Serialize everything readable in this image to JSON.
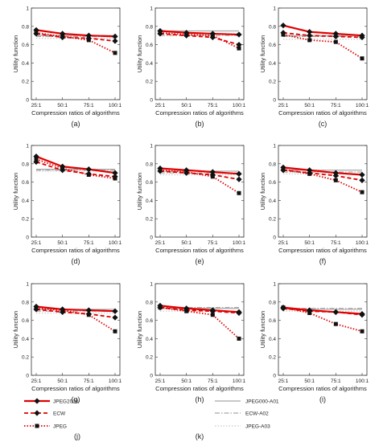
{
  "figure": {
    "legend": {
      "entries": [
        {
          "name": "JPEG2000",
          "color": "#e00000",
          "style": "solid",
          "marker": "diamond"
        },
        {
          "name": "ECW",
          "color": "#e00000",
          "style": "dashed",
          "marker": "diamond"
        },
        {
          "name": "JPEG",
          "color": "#e00000",
          "style": "dotted",
          "marker": "square"
        },
        {
          "name": "JPEG000-A01",
          "color": "#a8a8a8",
          "style": "solid",
          "marker": "none"
        },
        {
          "name": "ECW-A02",
          "color": "#a8a8a8",
          "style": "dashdot",
          "marker": "none"
        },
        {
          "name": "JPEG-A03",
          "color": "#c8c8c8",
          "style": "dotted",
          "marker": "none"
        }
      ]
    },
    "legend_panel_labels": [
      "(j)",
      "(k)"
    ]
  },
  "chart_data": [
    {
      "panel": "(a)",
      "type": "line",
      "categories": [
        "25:1",
        "50:1",
        "75:1",
        "100:1"
      ],
      "xlabel": "Compression ratios of algorithms",
      "ylabel": "Utility function",
      "ylim": [
        0,
        1
      ],
      "yticks": [
        "0",
        "0.2",
        "0.4",
        "0.6",
        "0.8",
        "1"
      ],
      "series": [
        {
          "name": "JPEG2000",
          "values": [
            0.76,
            0.72,
            0.7,
            0.69
          ]
        },
        {
          "name": "ECW",
          "values": [
            0.72,
            0.68,
            0.67,
            0.64
          ]
        },
        {
          "name": "JPEG",
          "values": [
            0.73,
            0.69,
            0.65,
            0.51
          ]
        },
        {
          "name": "JPEG000-A01",
          "values": [
            0.7,
            0.7,
            0.7,
            0.7
          ]
        },
        {
          "name": "ECW-A02",
          "values": [
            0.69,
            0.69,
            0.69,
            0.69
          ]
        },
        {
          "name": "JPEG-A03",
          "values": [
            0.67,
            0.67,
            0.67,
            0.67
          ]
        }
      ]
    },
    {
      "panel": "(b)",
      "type": "line",
      "categories": [
        "25:1",
        "50:1",
        "75:1",
        "100:1"
      ],
      "xlabel": "Compression ratios of algorithms",
      "ylabel": "Utility function",
      "ylim": [
        0,
        1
      ],
      "yticks": [
        "0",
        "0.2",
        "0.4",
        "0.6",
        "0.8",
        "1"
      ],
      "series": [
        {
          "name": "JPEG2000",
          "values": [
            0.75,
            0.73,
            0.72,
            0.71
          ]
        },
        {
          "name": "ECW",
          "values": [
            0.72,
            0.7,
            0.68,
            0.6
          ]
        },
        {
          "name": "JPEG",
          "values": [
            0.73,
            0.71,
            0.7,
            0.56
          ]
        },
        {
          "name": "JPEG000-A01",
          "values": [
            0.75,
            0.75,
            0.75,
            0.75
          ]
        },
        {
          "name": "ECW-A02",
          "values": [
            0.7,
            0.7,
            0.7,
            0.7
          ]
        },
        {
          "name": "JPEG-A03",
          "values": [
            0.72,
            0.72,
            0.72,
            0.72
          ]
        }
      ]
    },
    {
      "panel": "(c)",
      "type": "line",
      "categories": [
        "25:1",
        "50:1",
        "75:1",
        "100:1"
      ],
      "xlabel": "Compression ratios of algorithms",
      "ylabel": "Utility function",
      "ylim": [
        0,
        1
      ],
      "yticks": [
        "0",
        "0.2",
        "0.4",
        "0.6",
        "0.8",
        "1"
      ],
      "series": [
        {
          "name": "JPEG2000",
          "values": [
            0.81,
            0.74,
            0.72,
            0.7
          ]
        },
        {
          "name": "ECW",
          "values": [
            0.73,
            0.7,
            0.69,
            0.68
          ]
        },
        {
          "name": "JPEG",
          "values": [
            0.71,
            0.65,
            0.63,
            0.45
          ]
        },
        {
          "name": "JPEG000-A01",
          "values": [
            0.7,
            0.7,
            0.7,
            0.7
          ]
        },
        {
          "name": "ECW-A02",
          "values": [
            0.69,
            0.69,
            0.69,
            0.69
          ]
        },
        {
          "name": "JPEG-A03",
          "values": [
            0.66,
            0.66,
            0.66,
            0.66
          ]
        }
      ]
    },
    {
      "panel": "(d)",
      "type": "line",
      "categories": [
        "25:1",
        "50:1",
        "75:1",
        "100:1"
      ],
      "xlabel": "Compression ratios of algorithms",
      "ylabel": "Utility function",
      "ylim": [
        0,
        1
      ],
      "yticks": [
        "0",
        "0.2",
        "0.4",
        "0.6",
        "0.8",
        "1"
      ],
      "series": [
        {
          "name": "JPEG2000",
          "values": [
            0.88,
            0.77,
            0.74,
            0.7
          ]
        },
        {
          "name": "ECW",
          "values": [
            0.82,
            0.73,
            0.69,
            0.66
          ]
        },
        {
          "name": "JPEG",
          "values": [
            0.85,
            0.75,
            0.68,
            0.64
          ]
        },
        {
          "name": "JPEG000-A01",
          "values": [
            0.74,
            0.74,
            0.74,
            0.74
          ]
        },
        {
          "name": "ECW-A02",
          "values": [
            0.73,
            0.73,
            0.73,
            0.73
          ]
        },
        {
          "name": "JPEG-A03",
          "values": [
            0.72,
            0.72,
            0.72,
            0.72
          ]
        }
      ]
    },
    {
      "panel": "(e)",
      "type": "line",
      "categories": [
        "25:1",
        "50:1",
        "75:1",
        "100:1"
      ],
      "xlabel": "Compression ratios of algorithms",
      "ylabel": "Utility function",
      "ylim": [
        0,
        1
      ],
      "yticks": [
        "0",
        "0.2",
        "0.4",
        "0.6",
        "0.8",
        "1"
      ],
      "series": [
        {
          "name": "JPEG2000",
          "values": [
            0.75,
            0.73,
            0.71,
            0.69
          ]
        },
        {
          "name": "ECW",
          "values": [
            0.72,
            0.7,
            0.68,
            0.63
          ]
        },
        {
          "name": "JPEG",
          "values": [
            0.73,
            0.71,
            0.66,
            0.48
          ]
        },
        {
          "name": "JPEG000-A01",
          "values": [
            0.72,
            0.72,
            0.72,
            0.72
          ]
        },
        {
          "name": "ECW-A02",
          "values": [
            0.7,
            0.7,
            0.7,
            0.7
          ]
        },
        {
          "name": "JPEG-A03",
          "values": [
            0.68,
            0.68,
            0.68,
            0.68
          ]
        }
      ]
    },
    {
      "panel": "(f)",
      "type": "line",
      "categories": [
        "25:1",
        "50:1",
        "75:1",
        "100:1"
      ],
      "xlabel": "Compression ratios of algorithms",
      "ylabel": "Utility function",
      "ylim": [
        0,
        1
      ],
      "yticks": [
        "0",
        "0.2",
        "0.4",
        "0.6",
        "0.8",
        "1"
      ],
      "series": [
        {
          "name": "JPEG2000",
          "values": [
            0.76,
            0.73,
            0.7,
            0.68
          ]
        },
        {
          "name": "ECW",
          "values": [
            0.73,
            0.7,
            0.67,
            0.62
          ]
        },
        {
          "name": "JPEG",
          "values": [
            0.74,
            0.69,
            0.62,
            0.49
          ]
        },
        {
          "name": "JPEG000-A01",
          "values": [
            0.73,
            0.73,
            0.73,
            0.73
          ]
        },
        {
          "name": "ECW-A02",
          "values": [
            0.71,
            0.71,
            0.71,
            0.71
          ]
        },
        {
          "name": "JPEG-A03",
          "values": [
            0.69,
            0.69,
            0.69,
            0.69
          ]
        }
      ]
    },
    {
      "panel": "(g)",
      "type": "line",
      "categories": [
        "25:1",
        "50:1",
        "75:1",
        "100:1"
      ],
      "xlabel": "Compression ratios of algorithms",
      "ylabel": "Utility function",
      "ylim": [
        0,
        1
      ],
      "yticks": [
        "0",
        "0.2",
        "0.4",
        "0.6",
        "0.8",
        "1"
      ],
      "series": [
        {
          "name": "JPEG2000",
          "values": [
            0.75,
            0.72,
            0.71,
            0.7
          ]
        },
        {
          "name": "ECW",
          "values": [
            0.72,
            0.69,
            0.67,
            0.63
          ]
        },
        {
          "name": "JPEG",
          "values": [
            0.73,
            0.71,
            0.66,
            0.48
          ]
        },
        {
          "name": "JPEG000-A01",
          "values": [
            0.72,
            0.72,
            0.72,
            0.72
          ]
        },
        {
          "name": "ECW-A02",
          "values": [
            0.7,
            0.7,
            0.7,
            0.7
          ]
        },
        {
          "name": "JPEG-A03",
          "values": [
            0.68,
            0.68,
            0.68,
            0.68
          ]
        }
      ]
    },
    {
      "panel": "(h)",
      "type": "line",
      "categories": [
        "25:1",
        "50:1",
        "75:1",
        "100:1"
      ],
      "xlabel": "Compression ratios of algorithms",
      "ylabel": "Utility function",
      "ylim": [
        0,
        1
      ],
      "yticks": [
        "0",
        "0.2",
        "0.4",
        "0.6",
        "0.8",
        "1"
      ],
      "series": [
        {
          "name": "JPEG2000",
          "values": [
            0.76,
            0.73,
            0.71,
            0.69
          ]
        },
        {
          "name": "ECW",
          "values": [
            0.74,
            0.71,
            0.7,
            0.68
          ]
        },
        {
          "name": "JPEG",
          "values": [
            0.74,
            0.7,
            0.66,
            0.4
          ]
        },
        {
          "name": "JPEG000-A01",
          "values": [
            0.73,
            0.73,
            0.73,
            0.73
          ]
        },
        {
          "name": "ECW-A02",
          "values": [
            0.74,
            0.74,
            0.74,
            0.74
          ]
        },
        {
          "name": "JPEG-A03",
          "values": [
            0.7,
            0.7,
            0.7,
            0.7
          ]
        }
      ]
    },
    {
      "panel": "(i)",
      "type": "line",
      "categories": [
        "25:1",
        "50:1",
        "75:1",
        "100:1"
      ],
      "xlabel": "Compression ratios of algorithms",
      "ylabel": "Utility function",
      "ylim": [
        0,
        1
      ],
      "yticks": [
        "0",
        "0.2",
        "0.4",
        "0.6",
        "0.8",
        "1"
      ],
      "series": [
        {
          "name": "JPEG2000",
          "values": [
            0.74,
            0.71,
            0.69,
            0.67
          ]
        },
        {
          "name": "ECW",
          "values": [
            0.73,
            0.7,
            0.69,
            0.66
          ]
        },
        {
          "name": "JPEG",
          "values": [
            0.74,
            0.68,
            0.56,
            0.48
          ]
        },
        {
          "name": "JPEG000-A01",
          "values": [
            0.72,
            0.72,
            0.72,
            0.72
          ]
        },
        {
          "name": "ECW-A02",
          "values": [
            0.73,
            0.73,
            0.73,
            0.73
          ]
        },
        {
          "name": "JPEG-A03",
          "values": [
            0.7,
            0.7,
            0.7,
            0.7
          ]
        }
      ]
    }
  ]
}
